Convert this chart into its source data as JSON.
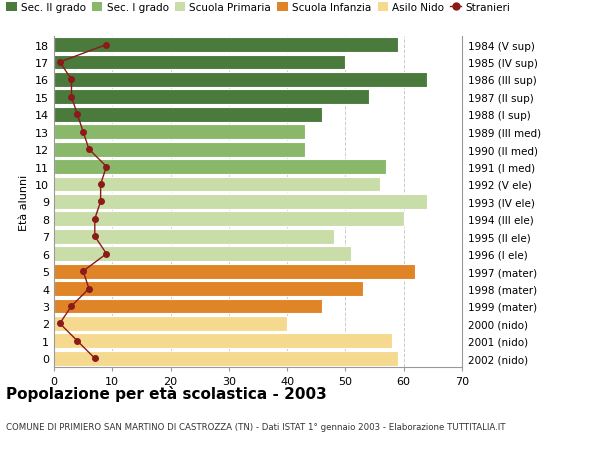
{
  "ages": [
    0,
    1,
    2,
    3,
    4,
    5,
    6,
    7,
    8,
    9,
    10,
    11,
    12,
    13,
    14,
    15,
    16,
    17,
    18
  ],
  "bar_values": [
    59,
    58,
    40,
    46,
    53,
    62,
    51,
    48,
    60,
    64,
    56,
    57,
    43,
    43,
    46,
    54,
    64,
    50,
    59
  ],
  "stranieri": [
    7,
    4,
    1,
    3,
    6,
    5,
    9,
    7,
    7,
    8,
    8,
    9,
    6,
    5,
    4,
    3,
    3,
    1,
    9
  ],
  "right_labels": [
    "2002 (nido)",
    "2001 (nido)",
    "2000 (nido)",
    "1999 (mater)",
    "1998 (mater)",
    "1997 (mater)",
    "1996 (I ele)",
    "1995 (II ele)",
    "1994 (III ele)",
    "1993 (IV ele)",
    "1992 (V ele)",
    "1991 (I med)",
    "1990 (II med)",
    "1989 (III med)",
    "1988 (I sup)",
    "1987 (II sup)",
    "1986 (III sup)",
    "1985 (IV sup)",
    "1984 (V sup)"
  ],
  "bar_colors": [
    "#f5d98e",
    "#f5d98e",
    "#f5d98e",
    "#e08428",
    "#e08428",
    "#e08428",
    "#c9dda8",
    "#c9dda8",
    "#c9dda8",
    "#c9dda8",
    "#c9dda8",
    "#8ab86a",
    "#8ab86a",
    "#8ab86a",
    "#4a7a3c",
    "#4a7a3c",
    "#4a7a3c",
    "#4a7a3c",
    "#4a7a3c"
  ],
  "stranieri_color": "#8b1a1a",
  "legend_labels": [
    "Sec. II grado",
    "Sec. I grado",
    "Scuola Primaria",
    "Scuola Infanzia",
    "Asilo Nido",
    "Stranieri"
  ],
  "legend_colors": [
    "#4a7a3c",
    "#8ab86a",
    "#c9dda8",
    "#e08428",
    "#f5d98e",
    "#8b1a1a"
  ],
  "title": "Popolazione per età scolastica - 2003",
  "subtitle": "COMUNE DI PRIMIERO SAN MARTINO DI CASTROZZA (TN) - Dati ISTAT 1° gennaio 2003 - Elaborazione TUTTITALIA.IT",
  "ylabel": "Età alunni",
  "xlim": [
    0,
    70
  ],
  "xticks": [
    0,
    10,
    20,
    30,
    40,
    50,
    60,
    70
  ],
  "bar_height": 0.85,
  "background_color": "#ffffff",
  "grid_color": "#cccccc"
}
